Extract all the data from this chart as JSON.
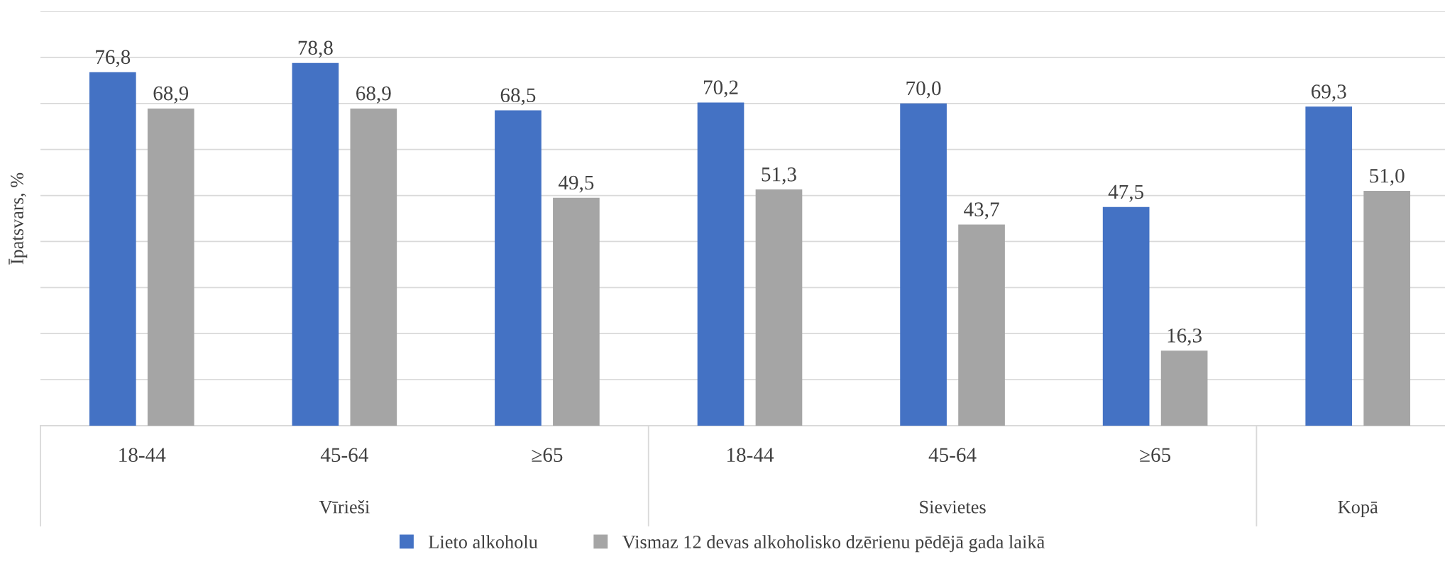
{
  "chart_data": {
    "type": "bar",
    "ylabel": "Īpatsvars, %",
    "categories": [
      "18-44",
      "45-64",
      "≥65",
      "18-44",
      "45-64",
      "≥65",
      null
    ],
    "series": [
      {
        "name": "Lieto alkoholu",
        "color": "#4472c4",
        "values": [
          76.8,
          78.8,
          68.5,
          70.2,
          70.0,
          47.5,
          69.3
        ],
        "value_labels": [
          "76,8",
          "78,8",
          "68,5",
          "70,2",
          "70,0",
          "47,5",
          "69,3"
        ]
      },
      {
        "name": "Vismaz 12 devas alkoholisko dzērienu pēdējā gada laikā",
        "color": "#a5a5a5",
        "values": [
          68.9,
          68.9,
          49.5,
          51.3,
          43.7,
          16.3,
          51.0
        ],
        "value_labels": [
          "68,9",
          "68,9",
          "49,5",
          "51,3",
          "43,7",
          "16,3",
          "51,0"
        ]
      }
    ],
    "annotations": [
      "Vīrieši",
      "Sievietes",
      "Kopā"
    ],
    "ylim": [
      0,
      90
    ],
    "yticks": [
      {
        "value": 0,
        "label": null
      },
      {
        "value": 10,
        "label": null
      },
      {
        "value": 20,
        "label": null
      },
      {
        "value": 30,
        "label": null
      },
      {
        "value": 40,
        "label": null
      },
      {
        "value": 50,
        "label": null
      },
      {
        "value": 60,
        "label": null
      },
      {
        "value": 70,
        "label": null
      },
      {
        "value": 80,
        "label": null
      },
      {
        "value": 90,
        "label": null
      }
    ],
    "grid": "y",
    "legend": "bottom",
    "tick_labels": "x"
  }
}
